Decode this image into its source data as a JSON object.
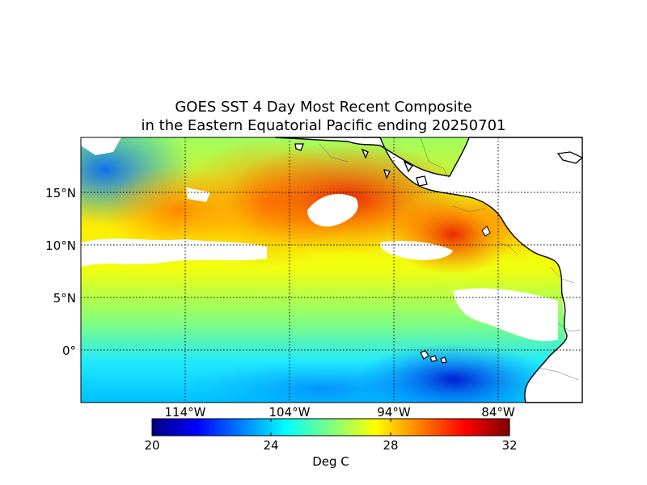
{
  "title": {
    "line1": "GOES SST 4 Day Most Recent Composite",
    "line2": "in the Eastern Equatorial Pacific ending 20250701"
  },
  "map": {
    "lat_labels": [
      "15°N",
      "10°N",
      "5°N",
      "0°"
    ],
    "lon_labels": [
      "114°W",
      "104°W",
      "94°W",
      "84°W"
    ],
    "colors": {
      "land": "#ffffff",
      "coast": "#000000",
      "grid": "#000000",
      "no_data": "#ffffff"
    }
  },
  "colorbar": {
    "tick_labels": [
      "20",
      "24",
      "28",
      "32"
    ],
    "unit_label": "Deg C",
    "colormap": [
      "#00007f",
      "#0000ff",
      "#007fff",
      "#00ffff",
      "#7fff7f",
      "#ffff00",
      "#ff7f00",
      "#ff0000",
      "#7f0000"
    ]
  }
}
